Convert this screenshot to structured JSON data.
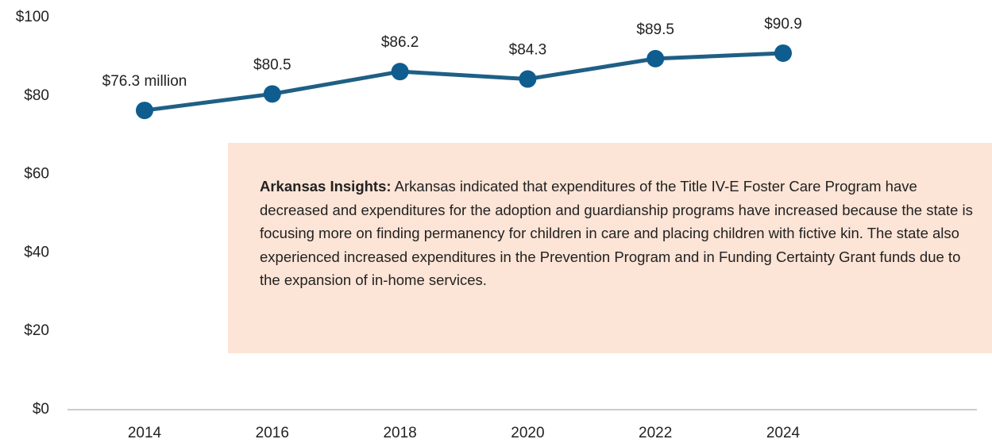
{
  "chart_data": {
    "type": "line",
    "categories": [
      "2014",
      "2016",
      "2018",
      "2020",
      "2022",
      "2024"
    ],
    "values": [
      76.3,
      80.5,
      86.2,
      84.3,
      89.5,
      90.9
    ],
    "value_labels": [
      "$76.3 million",
      "$80.5",
      "$86.2",
      "$84.3",
      "$89.5",
      "$90.9"
    ],
    "color": "#1f5f85",
    "ylim": [
      0,
      100
    ],
    "yticks": [
      {
        "value": 0,
        "label": "$0"
      },
      {
        "value": 20,
        "label": "$20"
      },
      {
        "value": 40,
        "label": "$40"
      },
      {
        "value": 60,
        "label": "$60"
      },
      {
        "value": 80,
        "label": "$80"
      },
      {
        "value": 100,
        "label": "$100"
      }
    ],
    "annotation": {
      "title": "Arkansas Insights:",
      "text": "Arkansas indicated that expenditures of the Title IV-E Foster Care Program have decreased and expenditures for the adoption and guardianship programs have increased because the state is focusing more on finding permanency for children in care and placing children with fictive kin. The state also experienced increased expenditures in the Prevention Program and in Funding Certainty Grant funds due to the expansion of in-home services."
    }
  }
}
